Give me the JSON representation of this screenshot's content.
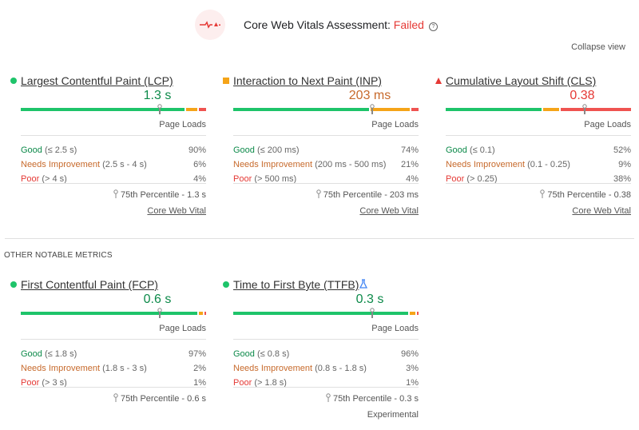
{
  "header": {
    "title": "Core Web Vitals Assessment: ",
    "status": "Failed",
    "help": "?",
    "collapse": "Collapse view"
  },
  "other_heading": "OTHER NOTABLE METRICS",
  "colors": {
    "good": "#1ec46a",
    "needs": "#f5a418",
    "poor": "#ef5350"
  },
  "metrics": [
    {
      "title": "Largest Contentful Paint (LCP)",
      "value": "1.3 s",
      "status": "good",
      "page_loads": "Page Loads",
      "good_label": "Good",
      "good_range": "(≤ 2.5 s)",
      "good_pct": "90%",
      "ni_label": "Needs Improvement",
      "ni_range": "(2.5 s - 4 s)",
      "ni_pct": "6%",
      "poor_label": "Poor",
      "poor_range": "(> 4 s)",
      "poor_pct": "4%",
      "percentile": "75th Percentile - 1.3 s",
      "link": "Core Web Vital",
      "dist": [
        90,
        6,
        4
      ]
    },
    {
      "title": "Interaction to Next Paint (INP)",
      "value": "203 ms",
      "status": "needs",
      "page_loads": "Page Loads",
      "good_label": "Good",
      "good_range": "(≤ 200 ms)",
      "good_pct": "74%",
      "ni_label": "Needs Improvement",
      "ni_range": "(200 ms - 500 ms)",
      "ni_pct": "21%",
      "poor_label": "Poor",
      "poor_range": "(> 500 ms)",
      "poor_pct": "4%",
      "percentile": "75th Percentile - 203 ms",
      "link": "Core Web Vital",
      "dist": [
        74,
        21,
        4
      ]
    },
    {
      "title": "Cumulative Layout Shift (CLS)",
      "value": "0.38",
      "status": "poor",
      "page_loads": "Page Loads",
      "good_label": "Good",
      "good_range": "(≤ 0.1)",
      "good_pct": "52%",
      "ni_label": "Needs Improvement",
      "ni_range": "(0.1 - 0.25)",
      "ni_pct": "9%",
      "poor_label": "Poor",
      "poor_range": "(> 0.25)",
      "poor_pct": "38%",
      "percentile": "75th Percentile - 0.38",
      "link": "Core Web Vital",
      "dist": [
        52,
        9,
        38
      ]
    },
    {
      "title": "First Contentful Paint (FCP)",
      "value": "0.6 s",
      "status": "good",
      "page_loads": "Page Loads",
      "good_label": "Good",
      "good_range": "(≤ 1.8 s)",
      "good_pct": "97%",
      "ni_label": "Needs Improvement",
      "ni_range": "(1.8 s - 3 s)",
      "ni_pct": "2%",
      "poor_label": "Poor",
      "poor_range": "(> 3 s)",
      "poor_pct": "1%",
      "percentile": "75th Percentile - 0.6 s",
      "dist": [
        97,
        2,
        1
      ]
    },
    {
      "title": "Time to First Byte (TTFB)",
      "value": "0.3 s",
      "status": "good",
      "page_loads": "Page Loads",
      "good_label": "Good",
      "good_range": "(≤ 0.8 s)",
      "good_pct": "96%",
      "ni_label": "Needs Improvement",
      "ni_range": "(0.8 s - 1.8 s)",
      "ni_pct": "3%",
      "poor_label": "Poor",
      "poor_range": "(> 1.8 s)",
      "poor_pct": "1%",
      "percentile": "75th Percentile - 0.3 s",
      "link": "Experimental",
      "experimental_icon": "flask-icon",
      "dist": [
        96,
        3,
        1
      ]
    }
  ]
}
